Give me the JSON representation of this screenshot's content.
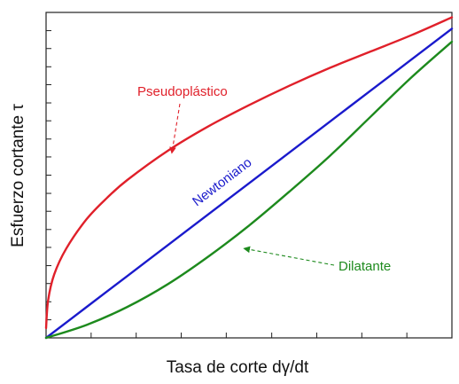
{
  "chart_data": {
    "type": "line",
    "xlabel": "Tasa de corte dγ/dt",
    "ylabel": "Esfuerzo cortante τ",
    "xlim": [
      0,
      1
    ],
    "ylim": [
      0,
      1
    ],
    "grid": false,
    "x_ticks": [
      0,
      0.111,
      0.222,
      0.333,
      0.444,
      0.556,
      0.667,
      0.778,
      0.889,
      1
    ],
    "y_ticks": [
      0,
      0.0556,
      0.111,
      0.167,
      0.222,
      0.278,
      0.333,
      0.389,
      0.444,
      0.5,
      0.556,
      0.611,
      0.667,
      0.722,
      0.778,
      0.833,
      0.889,
      0.944,
      1
    ],
    "series": [
      {
        "name": "Pseudoplástico",
        "color": "#e0202a",
        "x": [
          0,
          0.005,
          0.02,
          0.05,
          0.1,
          0.15,
          0.2,
          0.3,
          0.4,
          0.5,
          0.6,
          0.7,
          0.8,
          0.9,
          1
        ],
        "y": [
          0.03,
          0.115,
          0.195,
          0.275,
          0.365,
          0.43,
          0.485,
          0.575,
          0.65,
          0.715,
          0.775,
          0.83,
          0.88,
          0.93,
          0.985
        ]
      },
      {
        "name": "Newtoniano",
        "color": "#1a1acc",
        "x": [
          0,
          0.1,
          0.2,
          0.3,
          0.4,
          0.5,
          0.6,
          0.7,
          0.8,
          0.9,
          1
        ],
        "y": [
          0,
          0.095,
          0.19,
          0.285,
          0.38,
          0.475,
          0.57,
          0.665,
          0.76,
          0.855,
          0.95
        ]
      },
      {
        "name": "Dilatante",
        "color": "#1d8a1d",
        "x": [
          0,
          0.1,
          0.2,
          0.3,
          0.4,
          0.5,
          0.6,
          0.7,
          0.8,
          0.9,
          1
        ],
        "y": [
          0,
          0.04,
          0.095,
          0.165,
          0.25,
          0.345,
          0.45,
          0.56,
          0.68,
          0.8,
          0.91
        ]
      }
    ],
    "annotations": [
      {
        "text": "Pseudoplástico",
        "color": "#e0202a",
        "arrow": "dashed",
        "target_x": 0.3,
        "target_y": 0.58
      },
      {
        "text": "Newtoniano",
        "color": "#1a1acc",
        "arrow": "none",
        "rotation_follows_series": true
      },
      {
        "text": "Dilatante",
        "color": "#1d8a1d",
        "arrow": "dashed",
        "target_x": 0.48,
        "target_y": 0.28
      }
    ]
  }
}
